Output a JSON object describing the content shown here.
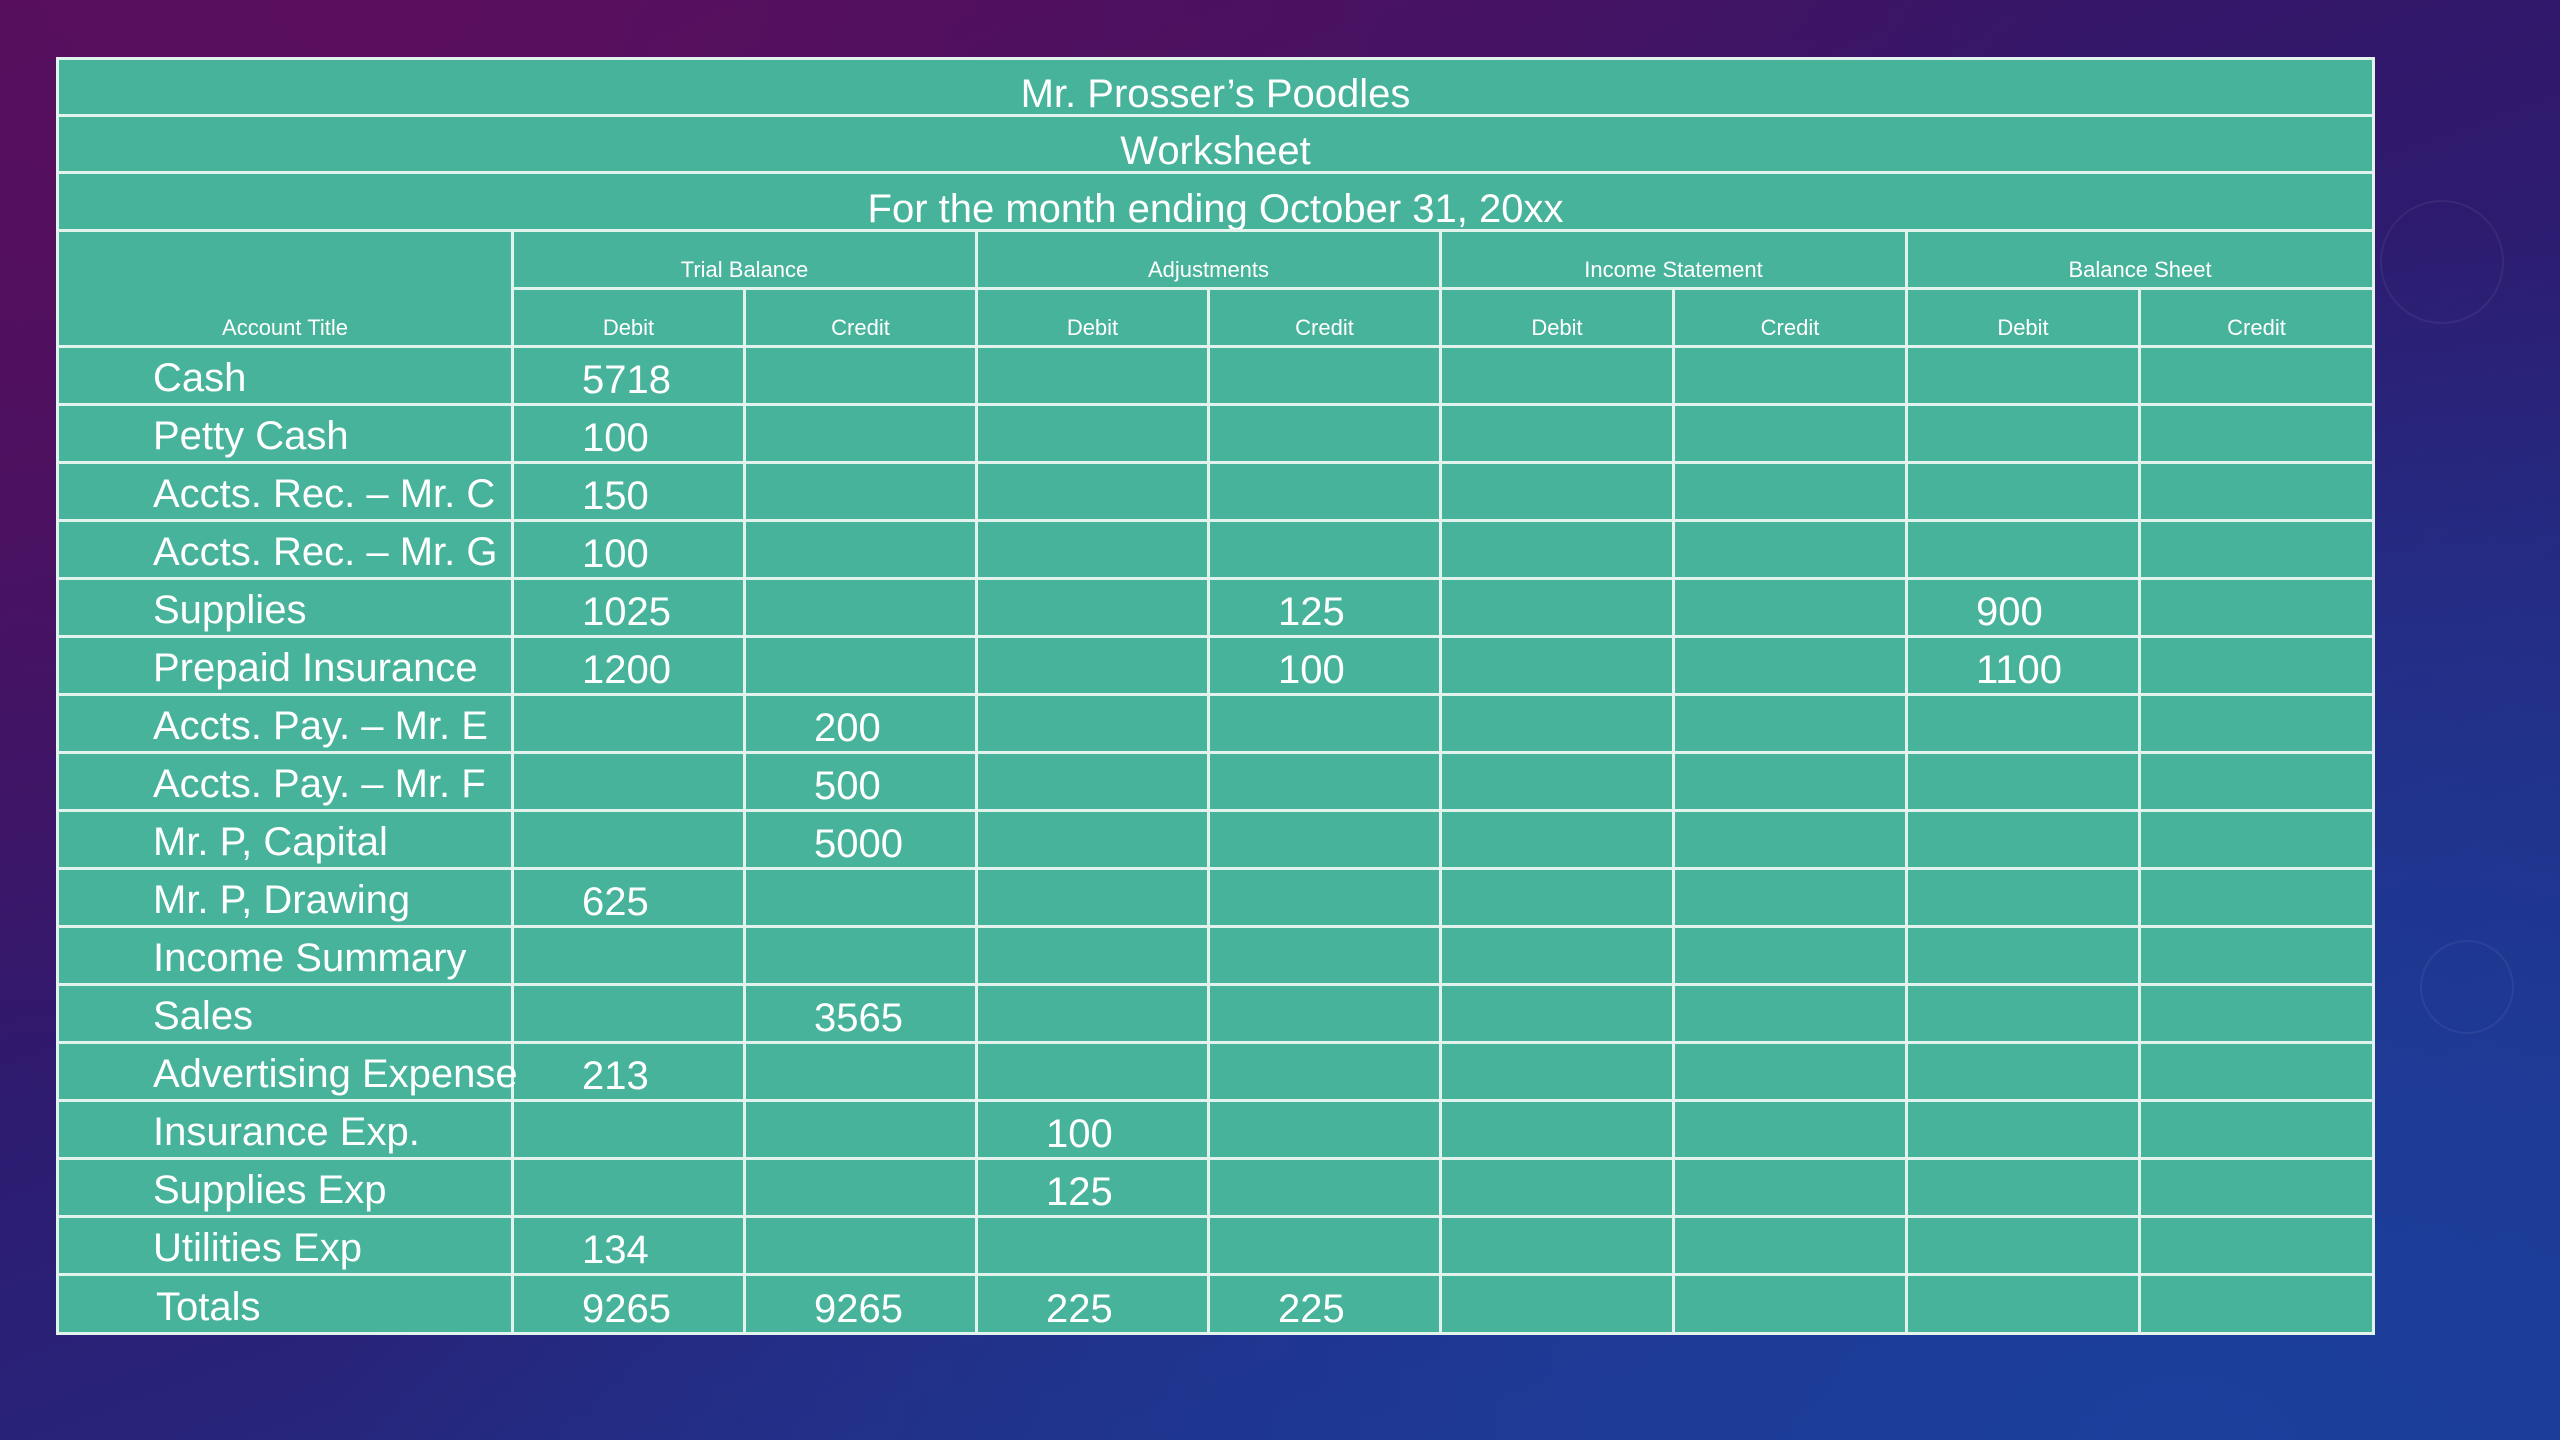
{
  "worksheet": {
    "company": "Mr. Prosser’s Poodles",
    "doc_name": "Worksheet",
    "period": "For the month ending October 31, 20xx",
    "account_title_header": "Account Title",
    "groups": [
      "Trial Balance",
      "Adjustments",
      "Income Statement",
      "Balance Sheet"
    ],
    "debit_label": "Debit",
    "credit_label": "Credit",
    "rows": [
      {
        "account": "Cash",
        "tb_debit": "5718",
        "tb_credit": "",
        "adj_debit": "",
        "adj_credit": "",
        "is_debit": "",
        "is_credit": "",
        "bs_debit": "",
        "bs_credit": ""
      },
      {
        "account": "Petty Cash",
        "tb_debit": "100",
        "tb_credit": "",
        "adj_debit": "",
        "adj_credit": "",
        "is_debit": "",
        "is_credit": "",
        "bs_debit": "",
        "bs_credit": ""
      },
      {
        "account": "Accts. Rec. – Mr. C",
        "tb_debit": "150",
        "tb_credit": "",
        "adj_debit": "",
        "adj_credit": "",
        "is_debit": "",
        "is_credit": "",
        "bs_debit": "",
        "bs_credit": ""
      },
      {
        "account": "Accts. Rec. – Mr. G",
        "tb_debit": "100",
        "tb_credit": "",
        "adj_debit": "",
        "adj_credit": "",
        "is_debit": "",
        "is_credit": "",
        "bs_debit": "",
        "bs_credit": ""
      },
      {
        "account": "Supplies",
        "tb_debit": "1025",
        "tb_credit": "",
        "adj_debit": "",
        "adj_credit": "125",
        "is_debit": "",
        "is_credit": "",
        "bs_debit": "900",
        "bs_credit": ""
      },
      {
        "account": "Prepaid Insurance",
        "tb_debit": "1200",
        "tb_credit": "",
        "adj_debit": "",
        "adj_credit": "100",
        "is_debit": "",
        "is_credit": "",
        "bs_debit": "1100",
        "bs_credit": ""
      },
      {
        "account": "Accts. Pay. – Mr. E",
        "tb_debit": "",
        "tb_credit": "200",
        "adj_debit": "",
        "adj_credit": "",
        "is_debit": "",
        "is_credit": "",
        "bs_debit": "",
        "bs_credit": ""
      },
      {
        "account": "Accts. Pay. – Mr. F",
        "tb_debit": "",
        "tb_credit": "500",
        "adj_debit": "",
        "adj_credit": "",
        "is_debit": "",
        "is_credit": "",
        "bs_debit": "",
        "bs_credit": ""
      },
      {
        "account": "Mr. P, Capital",
        "tb_debit": "",
        "tb_credit": "5000",
        "adj_debit": "",
        "adj_credit": "",
        "is_debit": "",
        "is_credit": "",
        "bs_debit": "",
        "bs_credit": ""
      },
      {
        "account": "Mr. P, Drawing",
        "tb_debit": "625",
        "tb_credit": "",
        "adj_debit": "",
        "adj_credit": "",
        "is_debit": "",
        "is_credit": "",
        "bs_debit": "",
        "bs_credit": ""
      },
      {
        "account": "Income Summary",
        "tb_debit": "",
        "tb_credit": "",
        "adj_debit": "",
        "adj_credit": "",
        "is_debit": "",
        "is_credit": "",
        "bs_debit": "",
        "bs_credit": ""
      },
      {
        "account": "Sales",
        "tb_debit": "",
        "tb_credit": "3565",
        "adj_debit": "",
        "adj_credit": "",
        "is_debit": "",
        "is_credit": "",
        "bs_debit": "",
        "bs_credit": ""
      },
      {
        "account": "Advertising Expense",
        "tb_debit": "213",
        "tb_credit": "",
        "adj_debit": "",
        "adj_credit": "",
        "is_debit": "",
        "is_credit": "",
        "bs_debit": "",
        "bs_credit": ""
      },
      {
        "account": "Insurance Exp.",
        "tb_debit": "",
        "tb_credit": "",
        "adj_debit": "100",
        "adj_credit": "",
        "is_debit": "",
        "is_credit": "",
        "bs_debit": "",
        "bs_credit": ""
      },
      {
        "account": "Supplies  Exp",
        "tb_debit": "",
        "tb_credit": "",
        "adj_debit": "125",
        "adj_credit": "",
        "is_debit": "",
        "is_credit": "",
        "bs_debit": "",
        "bs_credit": ""
      },
      {
        "account": "Utilities Exp",
        "tb_debit": "134",
        "tb_credit": "",
        "adj_debit": "",
        "adj_credit": "",
        "is_debit": "",
        "is_credit": "",
        "bs_debit": "",
        "bs_credit": ""
      }
    ],
    "totals": {
      "label": "Totals",
      "tb_debit": "9265",
      "tb_credit": "9265",
      "adj_debit": "225",
      "adj_credit": "225",
      "is_debit": "",
      "is_credit": "",
      "bs_debit": "",
      "bs_credit": ""
    }
  }
}
